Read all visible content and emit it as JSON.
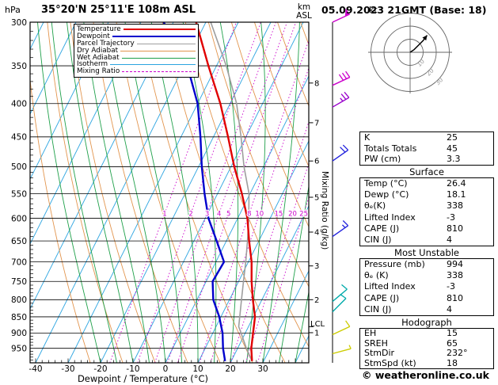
{
  "header": {
    "station_title": "35°20'N 25°11'E 108m ASL",
    "run_datetime": "05.09.2023 21GMT (Base: 18)"
  },
  "axes": {
    "pressure_unit": "hPa",
    "km_unit_line1": "km",
    "km_unit_line2": "ASL",
    "mixing_axis_label": "Mixing Ratio (g/kg)",
    "lcl_label": "LCL",
    "xlabel": "Dewpoint / Temperature (°C)"
  },
  "legend": {
    "items": [
      {
        "label": "Temperature",
        "color": "#e00000",
        "thickness": 2.2,
        "dotted": false
      },
      {
        "label": "Dewpoint",
        "color": "#0000cd",
        "thickness": 2.2,
        "dotted": false
      },
      {
        "label": "Parcel Trajectory",
        "color": "#9e9e9e",
        "thickness": 1.8,
        "dotted": false
      },
      {
        "label": "Dry Adiabat",
        "color": "#e2954e",
        "thickness": 1.3,
        "dotted": false
      },
      {
        "label": "Wet Adiabat",
        "color": "#1fa04a",
        "thickness": 1.3,
        "dotted": false
      },
      {
        "label": "Isotherm",
        "color": "#2aa4e0",
        "thickness": 1.3,
        "dotted": false
      },
      {
        "label": "Mixing Ratio",
        "color": "#cc00cc",
        "thickness": 1.5,
        "dotted": true
      }
    ]
  },
  "hodograph": {
    "unit_label": "kt",
    "rings_kt": [
      10,
      20,
      30
    ],
    "trace_uv_kt": [
      [
        0,
        0
      ],
      [
        3,
        2
      ],
      [
        6,
        5
      ],
      [
        10,
        9
      ],
      [
        13,
        13
      ]
    ],
    "storm_dir_deg": 232,
    "storm_speed_kt": 18
  },
  "tables": [
    {
      "header": "",
      "rows": [
        [
          "K",
          "25"
        ],
        [
          "Totals Totals",
          "45"
        ],
        [
          "PW (cm)",
          "3.3"
        ]
      ]
    },
    {
      "header": "Surface",
      "rows": [
        [
          "Temp (°C)",
          "26.4"
        ],
        [
          "Dewp (°C)",
          "18.1"
        ],
        [
          "θₑ(K)",
          "338"
        ],
        [
          "Lifted Index",
          "-3"
        ],
        [
          "CAPE (J)",
          "810"
        ],
        [
          "CIN (J)",
          "4"
        ]
      ]
    },
    {
      "header": "Most Unstable",
      "rows": [
        [
          "Pressure (mb)",
          "994"
        ],
        [
          "θₑ (K)",
          "338"
        ],
        [
          "Lifted Index",
          "-3"
        ],
        [
          "CAPE (J)",
          "810"
        ],
        [
          "CIN (J)",
          "4"
        ]
      ]
    },
    {
      "header": "Hodograph",
      "rows": [
        [
          "EH",
          "15"
        ],
        [
          "SREH",
          "65"
        ],
        [
          "StmDir",
          "232°"
        ],
        [
          "StmSpd (kt)",
          "18"
        ]
      ]
    }
  ],
  "footer": {
    "copyright": "© weatheronline.co.uk"
  },
  "colors": {
    "temperature": "#e00000",
    "dewpoint": "#0000cd",
    "parcel": "#9e9e9e",
    "dry_adiabat": "#e2954e",
    "wet_adiabat": "#1fa04a",
    "isotherm": "#2aa4e0",
    "mixing_ratio": "#cc00cc",
    "grid": "#000000"
  },
  "chart_data": {
    "type": "line",
    "title": "Skew-T log-P sounding 35°20'N 25°11'E 108m ASL 05.09.2023 21GMT",
    "xlabel": "Dewpoint / Temperature (°C)",
    "ylabel": "Pressure (hPa)",
    "x_ticks_c": [
      -40,
      -30,
      -20,
      -10,
      0,
      10,
      20,
      30
    ],
    "pressure_ticks_hpa": [
      300,
      350,
      400,
      450,
      500,
      550,
      600,
      650,
      700,
      750,
      800,
      850,
      900,
      950
    ],
    "xlim_c": [
      -44,
      44
    ],
    "pressure_range_hpa": [
      300,
      1000
    ],
    "series": [
      {
        "name": "Temperature",
        "color": "#e00000",
        "points": [
          [
            994,
            26.4
          ],
          [
            950,
            24.2
          ],
          [
            900,
            22.4
          ],
          [
            850,
            20.5
          ],
          [
            800,
            17.2
          ],
          [
            750,
            14.0
          ],
          [
            700,
            11.0
          ],
          [
            650,
            7.0
          ],
          [
            600,
            3.0
          ],
          [
            550,
            -2.5
          ],
          [
            500,
            -9.0
          ],
          [
            450,
            -15.5
          ],
          [
            400,
            -23.0
          ],
          [
            350,
            -32.5
          ],
          [
            300,
            -43.0
          ]
        ]
      },
      {
        "name": "Dewpoint",
        "color": "#0000cd",
        "points": [
          [
            994,
            18.1
          ],
          [
            950,
            15.5
          ],
          [
            900,
            13.0
          ],
          [
            850,
            9.5
          ],
          [
            800,
            5.0
          ],
          [
            750,
            2.0
          ],
          [
            700,
            2.5
          ],
          [
            650,
            -3.0
          ],
          [
            600,
            -9.0
          ],
          [
            550,
            -14.0
          ],
          [
            500,
            -19.0
          ],
          [
            450,
            -24.0
          ],
          [
            400,
            -30.0
          ],
          [
            350,
            -39.0
          ],
          [
            300,
            -53.0
          ]
        ]
      },
      {
        "name": "Parcel Trajectory",
        "color": "#9e9e9e",
        "points": [
          [
            994,
            26.4
          ],
          [
            950,
            22.7
          ],
          [
            900,
            18.7
          ],
          [
            880,
            17.0
          ],
          [
            850,
            15.8
          ],
          [
            800,
            13.7
          ],
          [
            750,
            11.5
          ],
          [
            700,
            9.2
          ],
          [
            650,
            6.5
          ],
          [
            600,
            3.4
          ],
          [
            550,
            -0.3
          ],
          [
            500,
            -6.0
          ],
          [
            450,
            -11.5
          ],
          [
            400,
            -18.0
          ],
          [
            350,
            -27.0
          ],
          [
            300,
            -38.5
          ]
        ]
      }
    ],
    "mixing_ratio_lines_g_kg": [
      1,
      2,
      3,
      4,
      5,
      8,
      10,
      15,
      20,
      25
    ],
    "km_asl_ticks": [
      {
        "km": 1,
        "p": 899
      },
      {
        "km": 2,
        "p": 800
      },
      {
        "km": 3,
        "p": 710
      },
      {
        "km": 4,
        "p": 630
      },
      {
        "km": 5,
        "p": 557
      },
      {
        "km": 6,
        "p": 490
      },
      {
        "km": 7,
        "p": 428
      },
      {
        "km": 8,
        "p": 372
      }
    ],
    "lcl_pressure_hpa": 880,
    "wind_barbs": [
      {
        "p": 300,
        "spd_kt": 50,
        "dir_deg": 245,
        "color": "#cc00cc"
      },
      {
        "p": 375,
        "spd_kt": 30,
        "dir_deg": 245,
        "color": "#cc00cc"
      },
      {
        "p": 405,
        "spd_kt": 25,
        "dir_deg": 240,
        "color": "#9900cc"
      },
      {
        "p": 490,
        "spd_kt": 20,
        "dir_deg": 235,
        "color": "#2222dd"
      },
      {
        "p": 640,
        "spd_kt": 15,
        "dir_deg": 235,
        "color": "#2222dd"
      },
      {
        "p": 805,
        "spd_kt": 10,
        "dir_deg": 230,
        "color": "#00aaaa"
      },
      {
        "p": 835,
        "spd_kt": 10,
        "dir_deg": 225,
        "color": "#00aaaa"
      },
      {
        "p": 905,
        "spd_kt": 10,
        "dir_deg": 245,
        "color": "#cccc00"
      },
      {
        "p": 968,
        "spd_kt": 5,
        "dir_deg": 255,
        "color": "#cccc00"
      }
    ],
    "background": {
      "isotherm_step_c": 10,
      "dry_adiabat_theta_k": {
        "min": 250,
        "max": 450,
        "step": 10
      },
      "wet_adiabat_start_c": {
        "min": -20,
        "max": 40,
        "step": 5
      }
    }
  }
}
